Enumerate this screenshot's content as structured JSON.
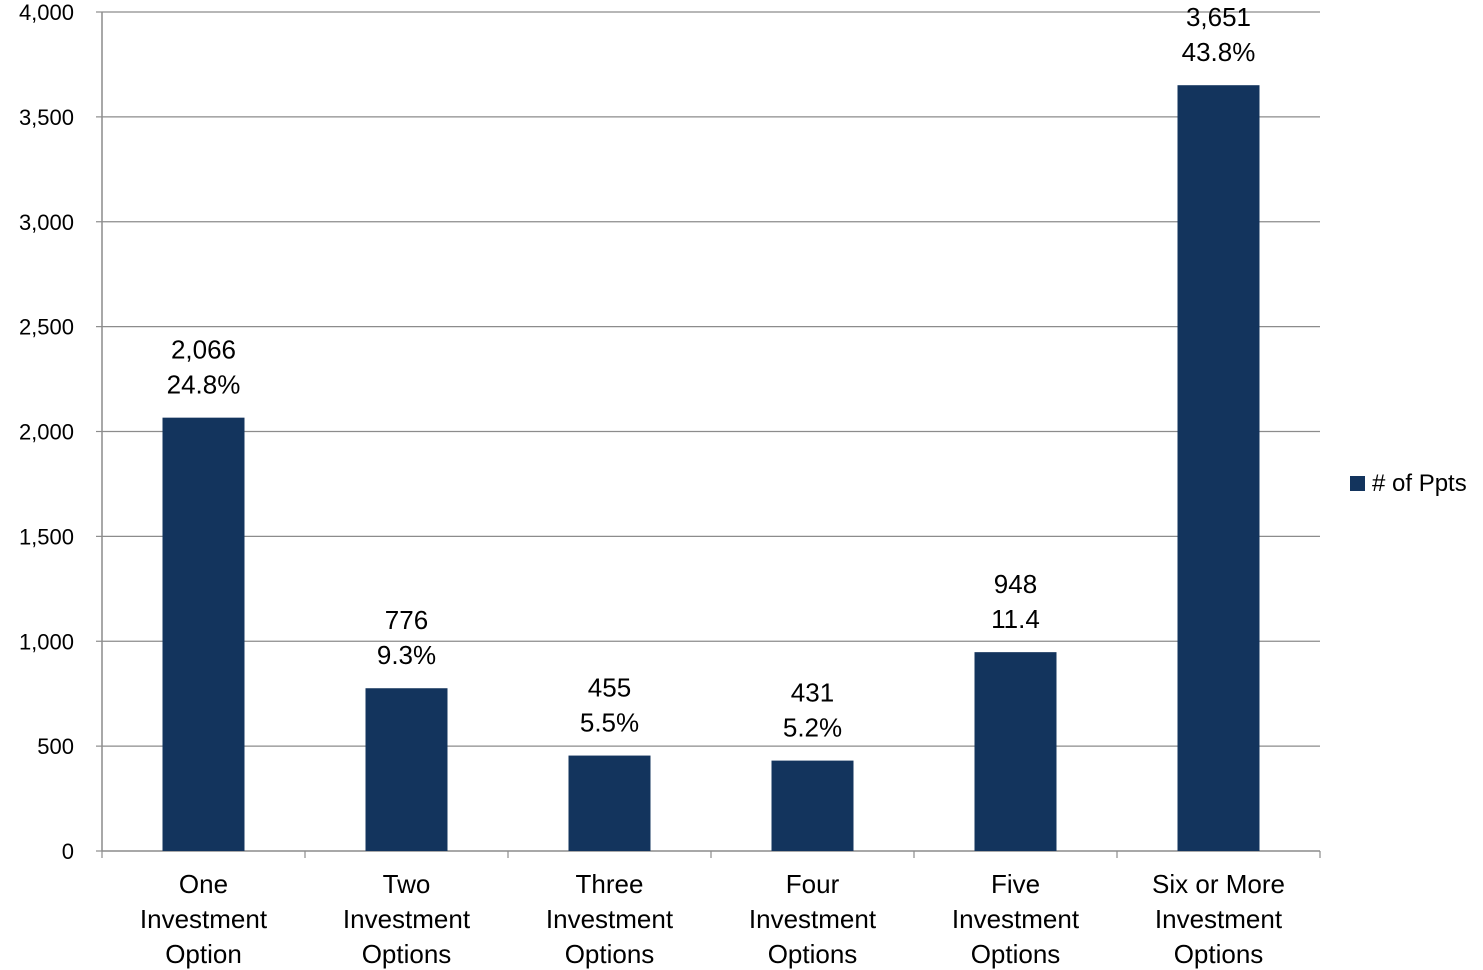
{
  "chart_data": {
    "type": "bar",
    "categories": [
      "One Investment Option",
      "Two Investment Options",
      "Three Investment Options",
      "Four Investment Options",
      "Five Investment Options",
      "Six or More Investment Options"
    ],
    "category_lines": [
      [
        "One",
        "Investment",
        "Option"
      ],
      [
        "Two",
        "Investment",
        "Options"
      ],
      [
        "Three",
        "Investment",
        "Options"
      ],
      [
        "Four",
        "Investment",
        "Options"
      ],
      [
        "Five",
        "Investment",
        "Options"
      ],
      [
        "Six or More",
        "Investment",
        "Options"
      ]
    ],
    "series": [
      {
        "name": "# of Ppts",
        "values": [
          2066,
          776,
          455,
          431,
          948,
          3651
        ],
        "color": "#13345d",
        "data_labels": [
          [
            "2,066",
            "24.8%"
          ],
          [
            "776",
            "9.3%"
          ],
          [
            "455",
            "5.5%"
          ],
          [
            "431",
            "5.2%"
          ],
          [
            "948",
            "11.4"
          ],
          [
            "3,651",
            "43.8%"
          ]
        ]
      }
    ],
    "ylim": [
      0,
      4000
    ],
    "yticks": [
      0,
      500,
      1000,
      1500,
      2000,
      2500,
      3000,
      3500,
      4000
    ],
    "ytick_labels": [
      "0",
      "500",
      "1,000",
      "1,500",
      "2,000",
      "2,500",
      "3,000",
      "3,500",
      "4,000"
    ],
    "title": "",
    "xlabel": "",
    "ylabel": "",
    "grid": true,
    "legend_position": "right"
  }
}
